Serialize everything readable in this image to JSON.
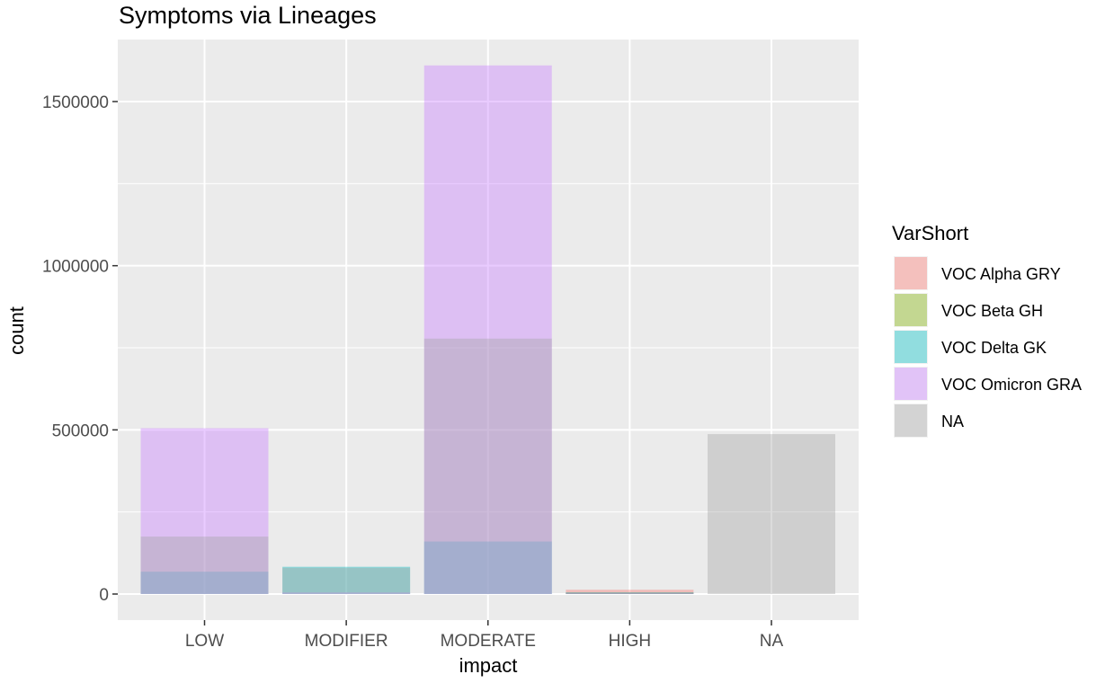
{
  "chart_data": {
    "type": "bar",
    "title": "Symptoms via Lineages",
    "xlabel": "impact",
    "ylabel": "count",
    "categories": [
      "LOW",
      "MODIFIER",
      "MODERATE",
      "HIGH",
      "NA"
    ],
    "ylim": [
      0,
      1700000
    ],
    "y_ticks": [
      0,
      500000,
      1000000,
      1500000
    ],
    "y_tick_labels": [
      "0",
      "500000",
      "1000000",
      "1500000"
    ],
    "bar_position": "identity (overlapping, semi-transparent)",
    "series": [
      {
        "name": "VOC Alpha GRY",
        "color": "#f8766d",
        "values": [
          0,
          0,
          0,
          13000,
          0
        ]
      },
      {
        "name": "VOC Beta GH",
        "color": "#7cae00",
        "values": [
          0,
          0,
          0,
          5000,
          0
        ]
      },
      {
        "name": "VOC Delta GK",
        "color": "#00bfc4",
        "values": [
          68000,
          83000,
          160000,
          5000,
          0
        ]
      },
      {
        "name": "VOC Omicron GRA",
        "color": "#c77cff",
        "values": [
          505000,
          5000,
          1610000,
          4000,
          0
        ]
      },
      {
        "name": "NA",
        "color": "#a6a6a6",
        "values": [
          175000,
          80000,
          778000,
          3000,
          487000
        ]
      }
    ],
    "legend": {
      "title": "VarShort",
      "position": "right"
    },
    "grid": true,
    "panel_background": "#ebebeb"
  }
}
